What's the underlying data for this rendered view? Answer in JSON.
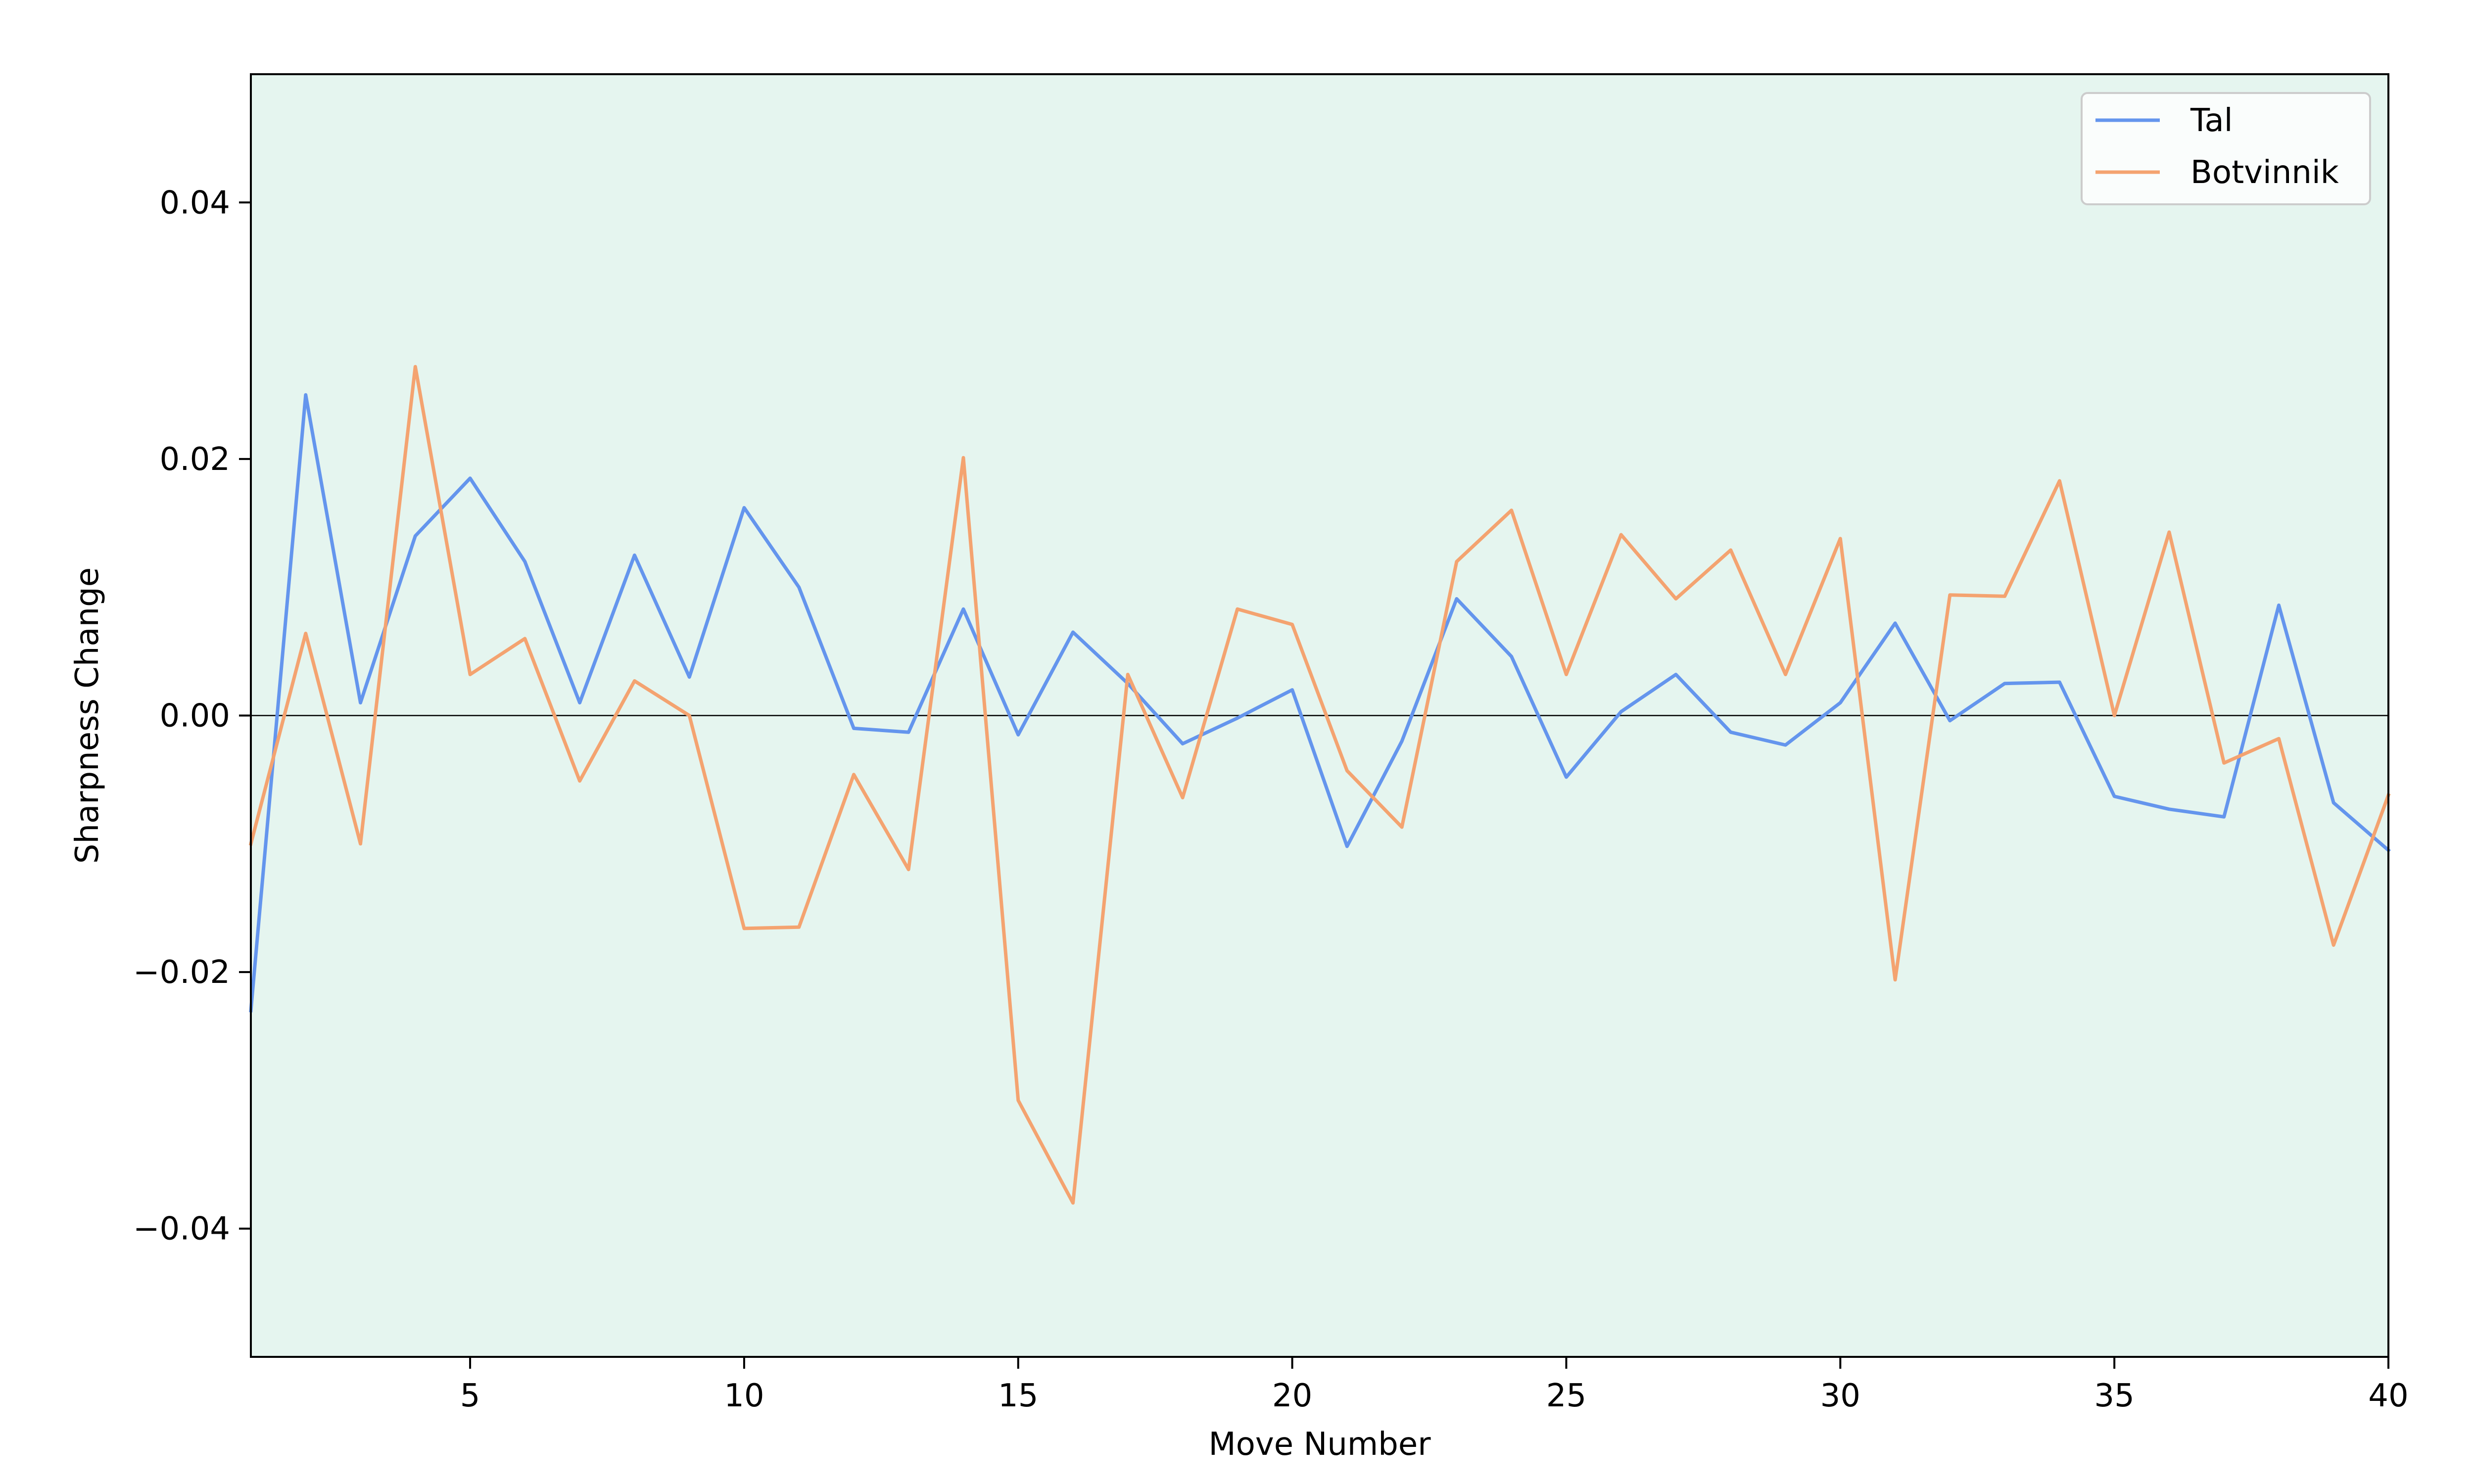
{
  "chart_data": {
    "type": "line",
    "title": "",
    "xlabel": "Move Number",
    "ylabel": "Sharpness Change",
    "xlim": [
      1,
      40
    ],
    "ylim": [
      -0.05,
      0.05
    ],
    "xticks": [
      5,
      10,
      15,
      20,
      25,
      30,
      35,
      40
    ],
    "xtick_labels": [
      "5",
      "10",
      "15",
      "20",
      "25",
      "30",
      "35",
      "40"
    ],
    "yticks": [
      -0.04,
      -0.02,
      0.0,
      0.02,
      0.04
    ],
    "ytick_labels": [
      "−0.04",
      "−0.02",
      "0.00",
      "0.02",
      "0.04"
    ],
    "grid": false,
    "zero_line": true,
    "legend_position": "top-right",
    "plot_background": "#e5f5ef",
    "x": [
      1,
      2,
      3,
      4,
      5,
      6,
      7,
      8,
      9,
      10,
      11,
      12,
      13,
      14,
      15,
      16,
      17,
      18,
      19,
      20,
      21,
      22,
      23,
      24,
      25,
      26,
      27,
      28,
      29,
      30,
      31,
      32,
      33,
      34,
      35,
      36,
      37,
      38,
      39,
      40
    ],
    "series": [
      {
        "name": "Tal",
        "color": "#6495ed",
        "values": [
          -0.023,
          0.025,
          0.001,
          0.014,
          0.0185,
          0.012,
          0.001,
          0.0125,
          0.003,
          0.0162,
          0.01,
          -0.001,
          -0.0013,
          0.0083,
          -0.0015,
          0.0065,
          0.0025,
          -0.0022,
          -0.0002,
          0.002,
          -0.0102,
          -0.002,
          0.0091,
          0.0046,
          -0.0048,
          0.0003,
          0.0032,
          -0.0013,
          -0.0023,
          0.001,
          0.0072,
          -0.0004,
          0.0025,
          0.0026,
          -0.0063,
          -0.0073,
          -0.0079,
          0.0086,
          -0.0068,
          -0.0105
        ]
      },
      {
        "name": "Botvinnik",
        "color": "#f4a370",
        "values": [
          -0.01,
          0.0064,
          -0.01,
          0.0272,
          0.0032,
          0.006,
          -0.0051,
          0.0027,
          0.0,
          -0.0166,
          -0.0165,
          -0.0046,
          -0.012,
          0.0201,
          -0.03,
          -0.038,
          0.0032,
          -0.0064,
          0.0083,
          0.0071,
          -0.0043,
          -0.0087,
          0.012,
          0.016,
          0.0032,
          0.0141,
          0.0091,
          0.0129,
          0.0032,
          0.0138,
          -0.0206,
          0.0094,
          0.0093,
          0.0183,
          0.0,
          0.0143,
          -0.0037,
          -0.0018,
          -0.0179,
          -0.0062
        ]
      }
    ]
  }
}
